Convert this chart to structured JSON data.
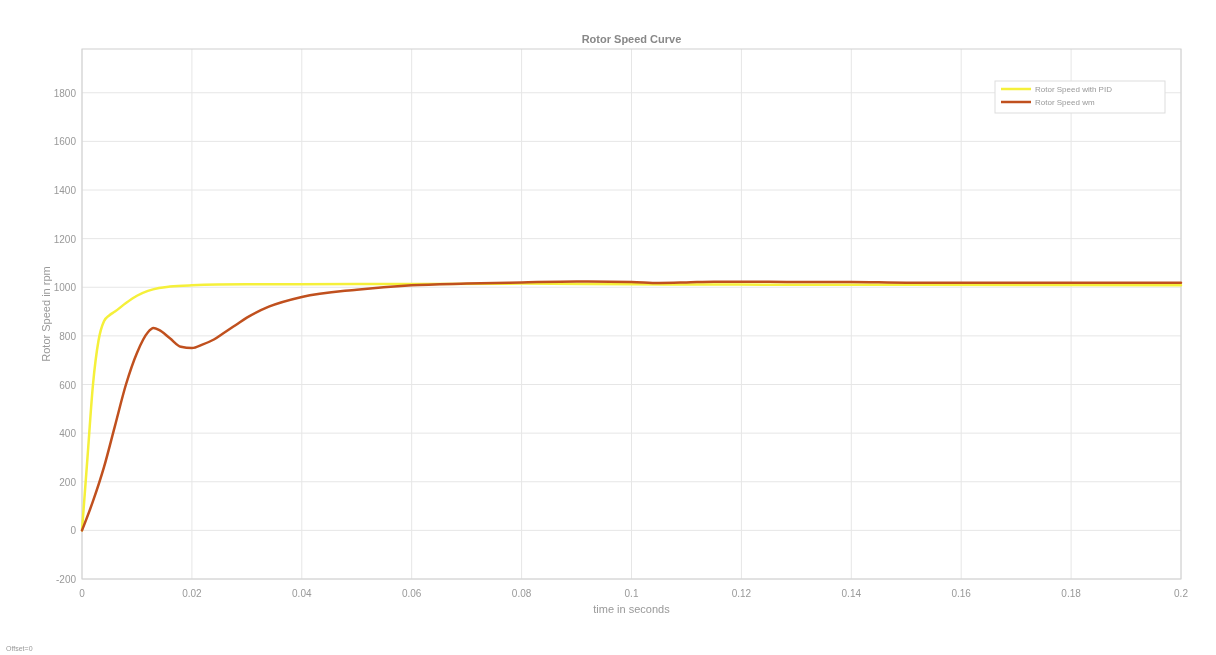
{
  "chart_data": {
    "type": "line",
    "title": "Rotor Speed Curve",
    "xlabel": "time in seconds",
    "ylabel": "Rotor Speed in rpm",
    "xlim": [
      0,
      0.2
    ],
    "xticks": [
      0,
      0.02,
      0.04,
      0.06,
      0.08,
      0.1,
      0.12,
      0.14,
      0.16,
      0.18,
      0.2
    ],
    "ylim": [
      -200,
      1980
    ],
    "yticks": [
      -200,
      0,
      200,
      400,
      600,
      800,
      1000,
      1200,
      1400,
      1600,
      1800
    ],
    "grid": true,
    "legend": "top right",
    "line_style": "solid",
    "annotations": [
      "Offset=0"
    ],
    "series": [
      {
        "name": "Rotor Speed with PID",
        "color": "#f5f03a",
        "x": [
          0,
          0.001,
          0.002,
          0.003,
          0.004,
          0.005,
          0.006,
          0.008,
          0.01,
          0.012,
          0.014,
          0.016,
          0.02,
          0.03,
          0.05,
          0.08,
          0.1,
          0.15,
          0.2
        ],
        "values": [
          0,
          300,
          600,
          780,
          860,
          885,
          900,
          935,
          965,
          985,
          997,
          1003,
          1008,
          1012,
          1013,
          1015,
          1012,
          1010,
          1008
        ]
      },
      {
        "name": "Rotor Speed wm",
        "color": "#c0501e",
        "x": [
          0,
          0.002,
          0.004,
          0.006,
          0.008,
          0.01,
          0.012,
          0.013,
          0.014,
          0.016,
          0.018,
          0.02,
          0.022,
          0.024,
          0.026,
          0.028,
          0.03,
          0.034,
          0.04,
          0.05,
          0.06,
          0.07,
          0.08,
          0.09,
          0.1,
          0.105,
          0.11,
          0.115,
          0.12,
          0.13,
          0.14,
          0.15,
          0.17,
          0.2
        ],
        "values": [
          0,
          120,
          260,
          430,
          600,
          730,
          815,
          832,
          825,
          790,
          755,
          750,
          765,
          785,
          815,
          845,
          875,
          920,
          960,
          990,
          1008,
          1015,
          1020,
          1024,
          1022,
          1018,
          1020,
          1023,
          1023,
          1022,
          1022,
          1019,
          1019,
          1019
        ]
      }
    ]
  }
}
